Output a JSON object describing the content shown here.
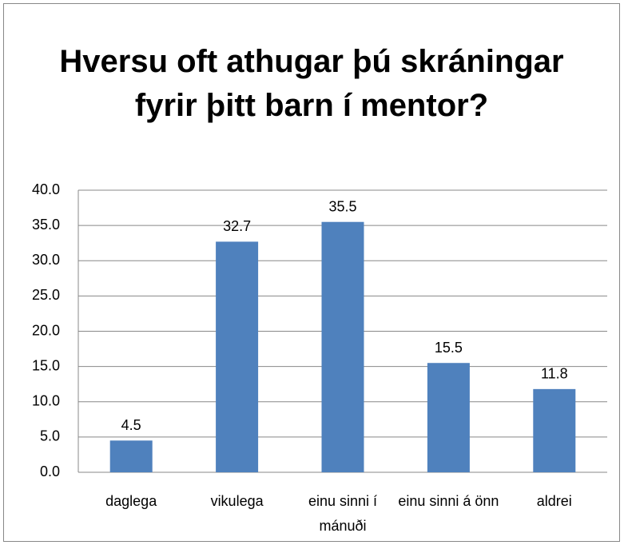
{
  "chart_data": {
    "type": "bar",
    "title": "Hversu oft athugar þú skráningar fyrir þitt barn í mentor?",
    "categories": [
      "daglega",
      "vikulega",
      "einu sinni í mánuði",
      "einu sinni á önn",
      "aldrei"
    ],
    "values": [
      4.5,
      32.7,
      35.5,
      15.5,
      11.8
    ],
    "color": "#4f81bd",
    "ylim": [
      0,
      40
    ],
    "yticks": [
      {
        "value": 0,
        "label": "0.0"
      },
      {
        "value": 5,
        "label": "5.0"
      },
      {
        "value": 10,
        "label": "10.0"
      },
      {
        "value": 15,
        "label": "15.0"
      },
      {
        "value": 20,
        "label": "20.0"
      },
      {
        "value": 25,
        "label": "25.0"
      },
      {
        "value": 30,
        "label": "30.0"
      },
      {
        "value": 35,
        "label": "35.0"
      },
      {
        "value": 40,
        "label": "40.0"
      }
    ],
    "grid": true
  }
}
